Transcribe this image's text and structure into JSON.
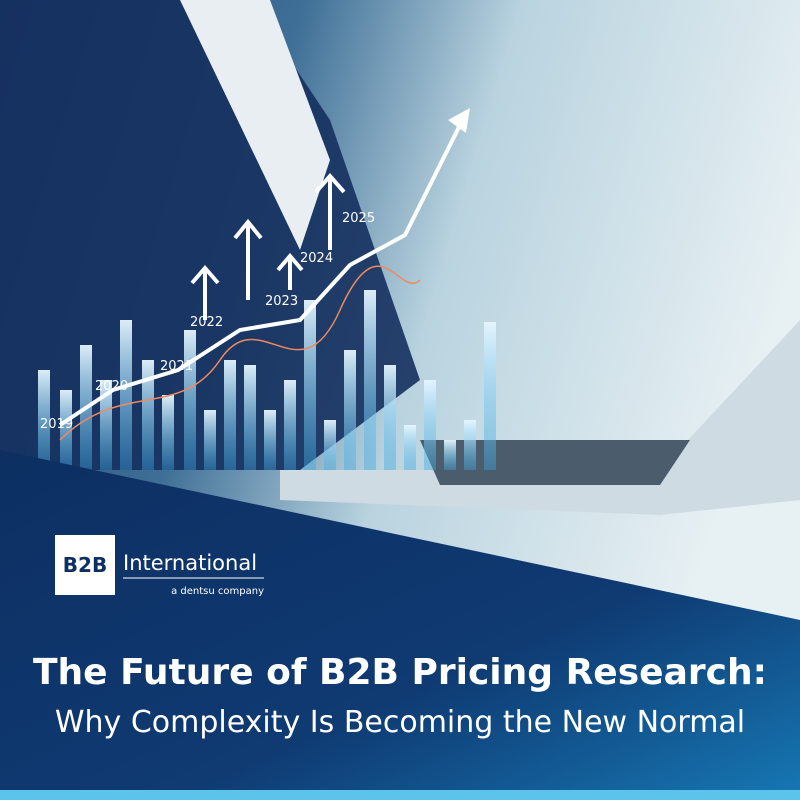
{
  "graphic": {
    "year_labels": [
      "2019",
      "2020",
      "2021",
      "2022",
      "2023",
      "2024",
      "2025"
    ]
  },
  "logo": {
    "mark": "B2B",
    "name": "International",
    "tagline": "a dentsu company"
  },
  "headline": {
    "title": "The Future of B2B Pricing Research:",
    "subtitle": "Why Complexity Is Becoming the New Normal"
  }
}
